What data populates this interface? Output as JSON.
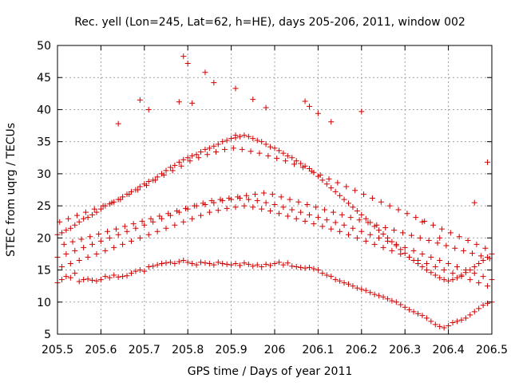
{
  "chart_data": {
    "type": "scatter",
    "title": "Rec. yell (Lon=245, Lat=62, h=HE), days 205-206, 2011, window 002",
    "xlabel": "GPS time / Days of year 2011",
    "ylabel": "STEC from uqrg / TECUs",
    "xlim": [
      205.5,
      206.5
    ],
    "ylim": [
      5,
      50
    ],
    "x_ticks": [
      "205.5",
      "205.6",
      "205.7",
      "205.8",
      "205.9",
      "206",
      "206.1",
      "206.2",
      "206.3",
      "206.4",
      "206.5"
    ],
    "y_ticks": [
      "5",
      "10",
      "15",
      "20",
      "25",
      "30",
      "35",
      "40",
      "45",
      "50"
    ],
    "grid": true,
    "marker": "plus",
    "color": "#d40000",
    "series": [
      {
        "x": [
          205.5,
          205.51,
          205.52,
          205.53,
          205.54,
          205.55,
          205.56,
          205.57,
          205.58,
          205.59,
          205.6,
          205.61,
          205.62,
          205.63,
          205.64,
          205.65,
          205.66,
          205.67,
          205.68,
          205.69,
          205.7,
          205.71,
          205.72,
          205.73,
          205.74,
          205.75,
          205.76,
          205.77,
          205.78,
          205.79,
          205.8,
          205.81,
          205.82,
          205.83,
          205.84,
          205.85,
          205.86,
          205.87,
          205.88,
          205.89,
          205.9,
          205.91,
          205.92,
          205.93,
          205.94,
          205.95,
          205.96,
          205.97,
          205.98,
          205.99,
          206.0,
          206.01,
          206.02,
          206.03,
          206.04,
          206.05,
          206.06,
          206.07,
          206.08,
          206.09,
          206.1,
          206.11,
          206.12,
          206.13,
          206.14,
          206.15,
          206.16,
          206.17,
          206.18,
          206.19,
          206.2,
          206.21,
          206.22,
          206.23,
          206.24,
          206.25,
          206.26,
          206.27,
          206.28,
          206.29,
          206.3,
          206.31,
          206.32,
          206.33,
          206.34,
          206.35,
          206.36,
          206.37,
          206.38,
          206.39,
          206.4,
          206.41,
          206.42,
          206.43,
          206.44,
          206.45,
          206.46,
          206.47,
          206.48,
          206.49,
          206.5,
          205.5,
          205.51,
          205.52,
          205.53,
          205.54,
          205.55,
          205.56,
          205.57,
          205.58,
          205.59,
          205.6,
          205.61,
          205.62,
          205.63,
          205.64,
          205.65,
          205.66,
          205.67,
          205.68,
          205.69,
          205.7,
          205.71,
          205.72,
          205.73,
          205.74,
          205.75,
          205.76,
          205.77,
          205.78,
          205.79,
          205.8,
          205.81,
          205.82,
          205.83,
          205.84,
          205.85,
          205.86,
          205.87,
          205.88,
          205.89,
          205.9,
          205.91,
          205.92,
          205.93,
          205.94,
          205.95,
          205.96,
          205.97,
          205.98,
          205.99,
          206.0,
          206.01,
          206.02,
          206.03,
          206.04,
          206.05,
          206.06,
          206.07,
          206.08,
          206.09,
          206.1,
          206.11,
          206.12,
          206.13,
          206.14,
          206.15,
          206.16,
          206.17,
          206.18,
          206.19,
          206.2,
          206.21,
          206.22,
          206.23,
          206.24,
          206.25,
          206.26,
          206.27,
          206.28,
          206.29,
          206.3,
          206.31,
          206.32,
          206.33,
          206.34,
          206.35,
          206.36,
          206.37,
          206.38,
          206.39,
          206.4,
          206.41,
          206.42,
          206.43,
          206.44,
          206.45,
          206.46,
          206.47,
          206.48,
          206.49,
          206.5,
          205.5,
          205.52,
          205.54,
          205.56,
          205.58,
          205.6,
          205.62,
          205.64,
          205.66,
          205.68,
          205.7,
          205.72,
          205.74,
          205.76,
          205.78,
          205.8,
          205.82,
          205.84,
          205.86,
          205.88,
          205.9,
          205.92,
          205.94,
          205.96,
          205.98,
          206.0,
          206.02,
          206.04,
          206.06,
          206.08,
          206.1,
          206.12,
          206.14,
          206.16,
          206.18,
          206.2,
          206.22,
          206.24,
          206.26,
          206.28,
          206.3,
          206.32,
          206.34,
          206.36,
          206.38,
          206.4,
          206.42,
          206.44,
          206.46,
          206.48,
          206.5,
          205.51,
          205.53,
          205.55,
          205.57,
          205.59,
          205.61,
          205.63,
          205.65,
          205.67,
          205.69,
          205.71,
          205.73,
          205.75,
          205.77,
          205.79,
          205.81,
          205.83,
          205.85,
          205.87,
          205.89,
          205.91,
          205.93,
          205.95,
          205.97,
          205.99,
          206.01,
          206.03,
          206.05,
          206.07,
          206.09,
          206.11,
          206.13,
          206.15,
          206.17,
          206.19,
          206.21,
          206.23,
          206.25,
          206.27,
          206.29,
          206.31,
          206.33,
          206.35,
          206.37,
          206.39,
          206.41,
          206.43,
          206.45,
          206.47,
          206.49,
          205.505,
          205.525,
          205.545,
          205.565,
          205.585,
          205.605,
          205.625,
          205.645,
          205.665,
          205.685,
          205.705,
          205.725,
          205.745,
          205.765,
          205.785,
          205.805,
          205.825,
          205.845,
          205.865,
          205.885,
          205.905,
          205.925,
          205.945,
          205.965,
          205.985,
          206.005,
          206.025,
          206.045,
          206.065,
          206.085,
          206.105,
          206.125,
          206.145,
          206.165,
          206.185,
          206.205,
          206.225,
          206.245,
          206.265,
          206.285,
          206.305,
          206.325,
          206.345,
          206.365,
          206.385,
          206.405,
          206.425,
          206.445,
          206.465,
          206.485,
          205.515,
          205.535,
          205.555,
          205.575,
          205.595,
          205.615,
          205.635,
          205.655,
          205.675,
          205.695,
          205.715,
          205.735,
          205.755,
          205.775,
          205.795,
          205.815,
          205.835,
          205.855,
          205.875,
          205.895,
          205.915,
          205.935,
          205.955,
          205.975,
          205.995,
          206.015,
          206.035,
          206.055,
          206.075,
          206.095,
          206.115,
          206.135,
          206.155,
          206.175,
          206.195,
          206.215,
          206.235,
          206.255,
          206.275,
          206.295,
          206.315,
          206.335,
          206.355,
          206.375,
          206.395,
          206.415,
          206.435,
          206.455,
          206.475,
          206.495,
          205.79,
          205.8,
          205.84,
          205.86,
          205.91,
          205.95,
          205.69,
          205.71,
          205.78,
          205.81,
          206.07,
          206.08,
          206.2,
          205.64,
          205.91,
          205.98,
          206.1,
          206.13,
          206.34,
          206.38,
          206.46,
          206.49
        ],
        "y": [
          13.0,
          13.5,
          14.0,
          13.8,
          14.5,
          13.2,
          13.5,
          13.6,
          13.4,
          13.3,
          13.5,
          14.0,
          13.8,
          14.2,
          13.9,
          14.0,
          14.1,
          14.5,
          14.8,
          15.0,
          14.8,
          15.5,
          15.6,
          15.8,
          16.0,
          16.1,
          16.2,
          16.0,
          16.3,
          16.5,
          16.2,
          16.0,
          15.8,
          16.2,
          16.1,
          16.0,
          15.8,
          16.2,
          16.0,
          15.9,
          15.8,
          16.0,
          15.7,
          16.1,
          15.9,
          15.6,
          15.8,
          15.5,
          15.9,
          15.7,
          16.0,
          16.2,
          15.8,
          16.1,
          15.6,
          15.5,
          15.4,
          15.3,
          15.4,
          15.2,
          15.0,
          14.5,
          14.2,
          14.0,
          13.5,
          13.3,
          13.0,
          12.8,
          12.5,
          12.2,
          12.0,
          11.8,
          11.5,
          11.2,
          11.0,
          10.8,
          10.5,
          10.2,
          10.0,
          9.6,
          9.2,
          8.8,
          8.5,
          8.2,
          7.9,
          7.5,
          7.0,
          6.5,
          6.2,
          6.0,
          6.3,
          6.8,
          7.0,
          7.2,
          7.5,
          8.0,
          8.5,
          9.0,
          9.5,
          9.8,
          10.0,
          20.5,
          20.8,
          21.2,
          21.5,
          22.0,
          22.5,
          23.0,
          23.2,
          23.6,
          24.0,
          24.5,
          25.0,
          25.3,
          25.6,
          26.0,
          26.4,
          26.8,
          27.2,
          27.5,
          28.0,
          28.4,
          28.8,
          29.0,
          29.5,
          30.0,
          30.5,
          31.0,
          31.3,
          31.8,
          32.2,
          32.5,
          32.8,
          33.0,
          33.4,
          33.8,
          34.0,
          34.3,
          34.6,
          35.0,
          35.2,
          35.5,
          35.6,
          35.8,
          36.0,
          35.8,
          35.5,
          35.2,
          35.0,
          34.6,
          34.2,
          34.0,
          33.6,
          33.2,
          32.8,
          32.5,
          32.0,
          31.6,
          31.2,
          30.8,
          30.2,
          29.6,
          29.0,
          28.4,
          27.8,
          27.2,
          26.6,
          26.0,
          25.4,
          24.8,
          24.2,
          23.6,
          23.0,
          22.4,
          21.8,
          21.2,
          20.6,
          20.0,
          19.4,
          18.8,
          18.2,
          17.6,
          17.0,
          16.5,
          16.0,
          15.5,
          15.0,
          14.6,
          14.2,
          13.8,
          13.5,
          13.3,
          13.5,
          13.8,
          14.2,
          14.6,
          15.0,
          15.5,
          16.0,
          16.5,
          17.0,
          17.5,
          17.0,
          17.5,
          18.0,
          18.5,
          19.0,
          19.5,
          20.0,
          20.5,
          21.0,
          21.5,
          22.0,
          22.5,
          23.0,
          23.5,
          24.0,
          24.5,
          25.0,
          25.2,
          25.5,
          25.8,
          26.0,
          26.2,
          26.0,
          25.8,
          25.5,
          25.2,
          24.8,
          24.4,
          24.0,
          23.6,
          23.2,
          22.8,
          22.4,
          22.0,
          21.5,
          21.0,
          20.5,
          20.0,
          19.5,
          19.0,
          18.5,
          18.0,
          17.5,
          17.0,
          16.5,
          16.0,
          15.5,
          15.0,
          14.5,
          14.0,
          13.5,
          15.5,
          16.0,
          16.5,
          17.0,
          17.5,
          18.0,
          18.5,
          19.0,
          19.5,
          20.0,
          20.5,
          21.0,
          21.5,
          22.0,
          22.5,
          23.0,
          23.5,
          24.0,
          24.3,
          24.6,
          24.8,
          25.0,
          24.8,
          24.5,
          24.2,
          23.8,
          23.4,
          23.0,
          22.6,
          22.2,
          21.8,
          21.4,
          21.0,
          20.5,
          20.0,
          19.5,
          19.0,
          18.5,
          18.0,
          17.5,
          17.0,
          16.5,
          16.0,
          15.5,
          15.0,
          14.5,
          14.0,
          13.5,
          13.0,
          12.5,
          22.5,
          23.0,
          23.5,
          24.0,
          24.5,
          25.0,
          25.5,
          26.0,
          26.8,
          27.5,
          28.2,
          29.0,
          29.8,
          30.5,
          31.2,
          32.0,
          32.5,
          33.0,
          33.4,
          33.8,
          34.0,
          33.8,
          33.5,
          33.2,
          32.8,
          32.4,
          32.0,
          31.5,
          31.0,
          30.4,
          29.8,
          29.2,
          28.6,
          28.0,
          27.4,
          26.8,
          26.2,
          25.6,
          25.0,
          24.4,
          23.8,
          23.2,
          22.6,
          22.0,
          21.4,
          20.8,
          20.2,
          19.6,
          19.0,
          18.4,
          19.0,
          19.4,
          19.8,
          20.2,
          20.6,
          21.0,
          21.4,
          21.8,
          22.2,
          22.6,
          23.0,
          23.4,
          23.8,
          24.2,
          24.6,
          25.0,
          25.4,
          25.8,
          26.0,
          26.2,
          26.4,
          26.6,
          26.8,
          27.0,
          26.8,
          26.4,
          26.0,
          25.6,
          25.2,
          24.8,
          24.4,
          24.0,
          23.6,
          23.2,
          22.8,
          22.4,
          22.0,
          21.6,
          21.2,
          20.8,
          20.4,
          20.0,
          19.6,
          19.2,
          18.8,
          18.4,
          18.0,
          17.6,
          17.2,
          16.8,
          48.3,
          47.2,
          45.8,
          44.2,
          43.3,
          41.6,
          41.5,
          40.0,
          41.2,
          41.0,
          41.3,
          40.5,
          39.7,
          37.8,
          36.0,
          40.3,
          39.4,
          38.1,
          22.5,
          20.0,
          25.5,
          31.8
        ]
      }
    ]
  }
}
